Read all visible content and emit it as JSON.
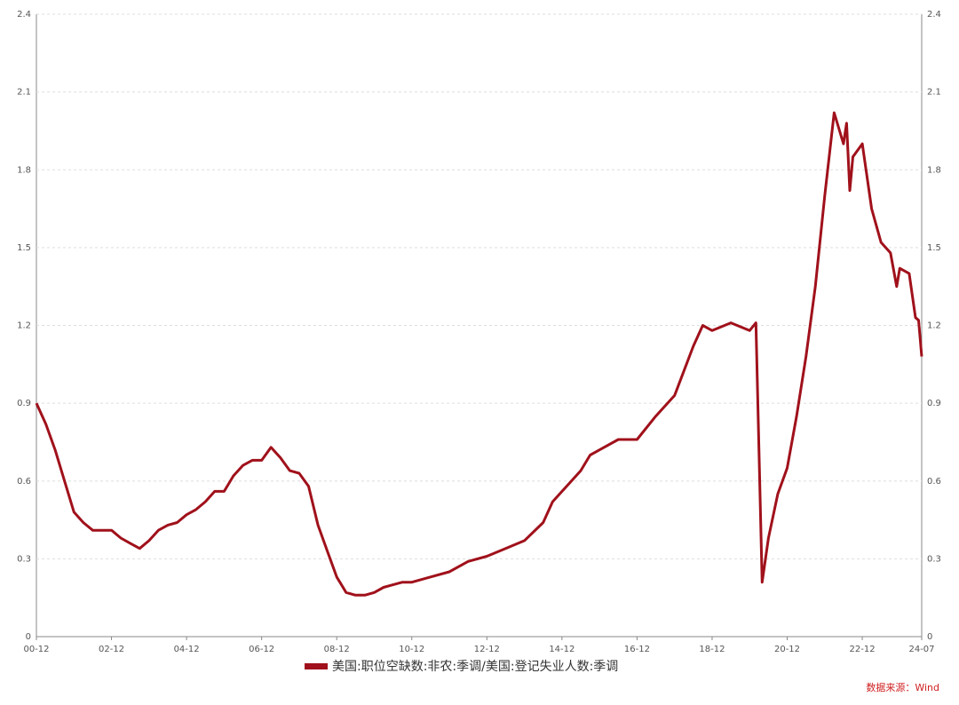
{
  "chart_data": {
    "type": "line",
    "x": [
      "00-12",
      "01-03",
      "01-06",
      "01-09",
      "01-12",
      "02-03",
      "02-06",
      "02-09",
      "02-12",
      "03-03",
      "03-06",
      "03-09",
      "03-12",
      "04-03",
      "04-06",
      "04-09",
      "04-12",
      "05-03",
      "05-06",
      "05-09",
      "05-12",
      "06-03",
      "06-06",
      "06-09",
      "06-12",
      "07-03",
      "07-06",
      "07-09",
      "07-12",
      "08-03",
      "08-06",
      "08-09",
      "08-12",
      "09-03",
      "09-06",
      "09-09",
      "09-12",
      "10-03",
      "10-06",
      "10-09",
      "10-12",
      "11-06",
      "11-12",
      "12-06",
      "12-12",
      "13-06",
      "13-12",
      "14-06",
      "14-09",
      "14-12",
      "15-06",
      "15-09",
      "15-12",
      "16-06",
      "16-12",
      "17-06",
      "17-12",
      "18-06",
      "18-09",
      "18-12",
      "19-06",
      "19-12",
      "20-02",
      "20-04",
      "20-06",
      "20-09",
      "20-12",
      "21-03",
      "21-06",
      "21-09",
      "21-12",
      "22-03",
      "22-06",
      "22-07",
      "22-08",
      "22-09",
      "22-12",
      "23-03",
      "23-06",
      "23-09",
      "23-11",
      "23-12",
      "24-03",
      "24-05",
      "24-06",
      "24-07"
    ],
    "series": [
      {
        "name": "美国:职位空缺数:非农:季调/美国:登记失业人数:季调",
        "color": "#a0111b",
        "values": [
          0.9,
          0.82,
          0.72,
          0.6,
          0.48,
          0.44,
          0.41,
          0.41,
          0.41,
          0.38,
          0.36,
          0.34,
          0.37,
          0.41,
          0.43,
          0.44,
          0.47,
          0.49,
          0.52,
          0.56,
          0.56,
          0.62,
          0.66,
          0.68,
          0.68,
          0.73,
          0.69,
          0.64,
          0.63,
          0.58,
          0.43,
          0.33,
          0.23,
          0.17,
          0.16,
          0.16,
          0.17,
          0.19,
          0.2,
          0.21,
          0.21,
          0.23,
          0.25,
          0.29,
          0.31,
          0.34,
          0.37,
          0.44,
          0.52,
          0.56,
          0.64,
          0.7,
          0.72,
          0.76,
          0.76,
          0.85,
          0.93,
          1.12,
          1.2,
          1.18,
          1.21,
          1.18,
          1.21,
          0.21,
          0.38,
          0.55,
          0.65,
          0.85,
          1.08,
          1.35,
          1.7,
          2.02,
          1.9,
          1.98,
          1.72,
          1.85,
          1.9,
          1.65,
          1.52,
          1.48,
          1.35,
          1.42,
          1.4,
          1.23,
          1.22,
          1.08
        ]
      }
    ],
    "xlim": [
      "00-12",
      "24-07"
    ],
    "xticks": [
      "00-12",
      "02-12",
      "04-12",
      "06-12",
      "08-12",
      "10-12",
      "12-12",
      "14-12",
      "16-12",
      "18-12",
      "20-12",
      "22-12",
      "24-07"
    ],
    "ylim": [
      0,
      2.4
    ],
    "yticks": [
      0,
      0.3,
      0.6,
      0.9,
      1.2,
      1.5,
      1.8,
      2.1,
      2.4
    ],
    "grid": true,
    "source": "数据来源：Wind"
  }
}
